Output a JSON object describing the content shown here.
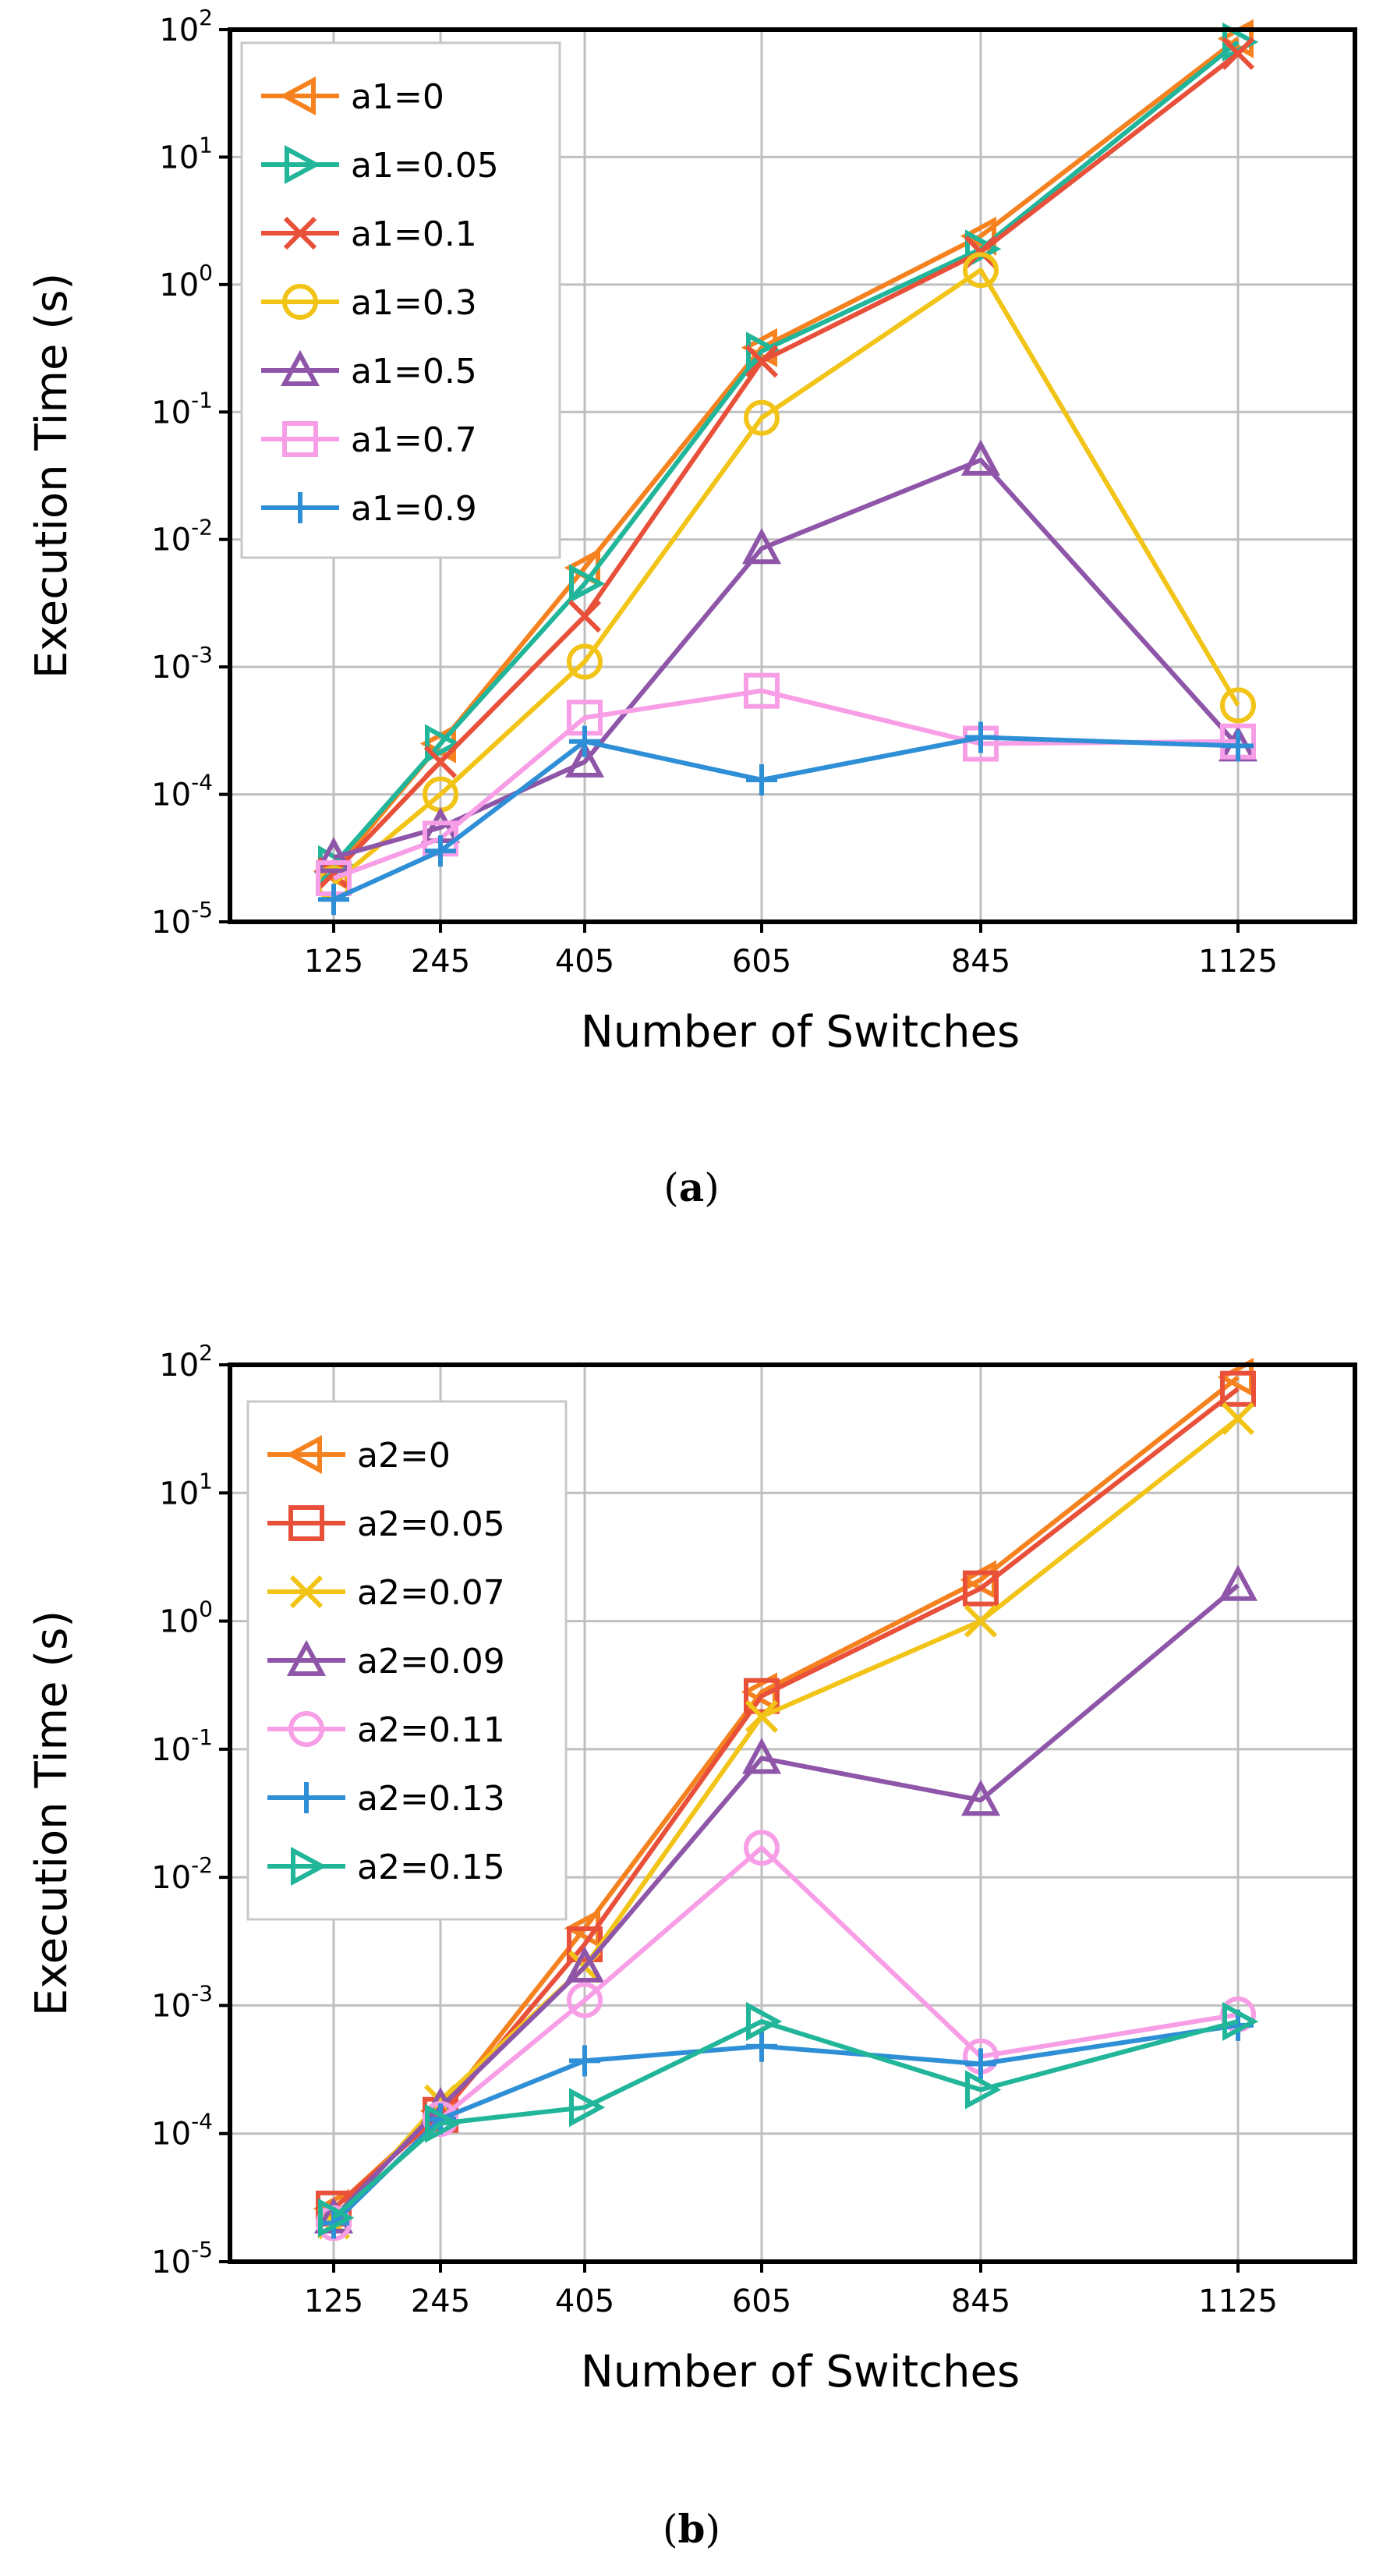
{
  "chart_data": [
    {
      "type": "line",
      "caption_open": "(",
      "caption_letter": "a",
      "caption_close": ")",
      "xlabel": "Number of Switches",
      "ylabel": "Execution Time (s)",
      "yscale": "log",
      "ylim": [
        1e-05,
        100
      ],
      "grid": true,
      "legend_position": "top-left",
      "categories": [
        "125",
        "245",
        "405",
        "605",
        "845",
        "1125"
      ],
      "y_ticks": [
        {
          "base": "10",
          "exp": "2"
        },
        {
          "base": "10",
          "exp": "1"
        },
        {
          "base": "10",
          "exp": "0"
        },
        {
          "base": "10",
          "exp": "-1"
        },
        {
          "base": "10",
          "exp": "-2"
        },
        {
          "base": "10",
          "exp": "-3"
        },
        {
          "base": "10",
          "exp": "-4"
        },
        {
          "base": "10",
          "exp": "-5"
        }
      ],
      "series": [
        {
          "name": "a1=0",
          "color": "#F5821F",
          "marker": "triangle-left",
          "values": [
            2.5e-05,
            0.00025,
            0.006,
            0.32,
            2.4,
            85
          ]
        },
        {
          "name": "a1=0.05",
          "color": "#21B59A",
          "marker": "triangle-right",
          "values": [
            2.8e-05,
            0.00025,
            0.0045,
            0.3,
            1.9,
            80
          ]
        },
        {
          "name": "a1=0.1",
          "color": "#E8503A",
          "marker": "x",
          "values": [
            2.4e-05,
            0.00018,
            0.0025,
            0.25,
            1.8,
            65
          ]
        },
        {
          "name": "a1=0.3",
          "color": "#F2C417",
          "marker": "circle",
          "values": [
            2e-05,
            0.0001,
            0.0011,
            0.09,
            1.3,
            0.0005
          ]
        },
        {
          "name": "a1=0.5",
          "color": "#8E55A8",
          "marker": "triangle-up",
          "values": [
            3.2e-05,
            5.5e-05,
            0.00018,
            0.0085,
            0.042,
            0.00024
          ]
        },
        {
          "name": "a1=0.7",
          "color": "#F79EE6",
          "marker": "square",
          "values": [
            2.2e-05,
            4.5e-05,
            0.0004,
            0.00065,
            0.00025,
            0.00026
          ]
        },
        {
          "name": "a1=0.9",
          "color": "#2E8FD6",
          "marker": "plus",
          "values": [
            1.5e-05,
            3.6e-05,
            0.00026,
            0.00013,
            0.00028,
            0.00024
          ]
        }
      ]
    },
    {
      "type": "line",
      "caption_open": "(",
      "caption_letter": "b",
      "caption_close": ")",
      "xlabel": "Number of Switches",
      "ylabel": "Execution Time (s)",
      "yscale": "log",
      "ylim": [
        1e-05,
        100
      ],
      "grid": true,
      "legend_position": "top-left",
      "categories": [
        "125",
        "245",
        "405",
        "605",
        "845",
        "1125"
      ],
      "y_ticks": [
        {
          "base": "10",
          "exp": "2"
        },
        {
          "base": "10",
          "exp": "1"
        },
        {
          "base": "10",
          "exp": "0"
        },
        {
          "base": "10",
          "exp": "-1"
        },
        {
          "base": "10",
          "exp": "-2"
        },
        {
          "base": "10",
          "exp": "-3"
        },
        {
          "base": "10",
          "exp": "-4"
        },
        {
          "base": "10",
          "exp": "-5"
        }
      ],
      "series": [
        {
          "name": "a2=0",
          "color": "#F5821F",
          "marker": "triangle-left",
          "values": [
            2.6e-05,
            0.00015,
            0.004,
            0.28,
            2.1,
            80
          ]
        },
        {
          "name": "a2=0.05",
          "color": "#E8503A",
          "marker": "square",
          "values": [
            2.6e-05,
            0.00014,
            0.003,
            0.26,
            1.8,
            65
          ]
        },
        {
          "name": "a2=0.07",
          "color": "#F2C417",
          "marker": "x",
          "values": [
            2e-05,
            0.00018,
            0.002,
            0.18,
            1.0,
            38
          ]
        },
        {
          "name": "a2=0.09",
          "color": "#8E55A8",
          "marker": "triangle-up",
          "values": [
            2.2e-05,
            0.00016,
            0.002,
            0.085,
            0.04,
            1.9
          ]
        },
        {
          "name": "a2=0.11",
          "color": "#F79EE6",
          "marker": "circle",
          "values": [
            2e-05,
            0.00013,
            0.0011,
            0.017,
            0.0004,
            0.00085
          ]
        },
        {
          "name": "a2=0.13",
          "color": "#2E8FD6",
          "marker": "plus",
          "values": [
            2e-05,
            0.00013,
            0.00037,
            0.00048,
            0.00035,
            0.0007
          ]
        },
        {
          "name": "a2=0.15",
          "color": "#21B59A",
          "marker": "triangle-right",
          "values": [
            2.2e-05,
            0.00012,
            0.00016,
            0.00075,
            0.00022,
            0.00075
          ]
        }
      ]
    }
  ]
}
